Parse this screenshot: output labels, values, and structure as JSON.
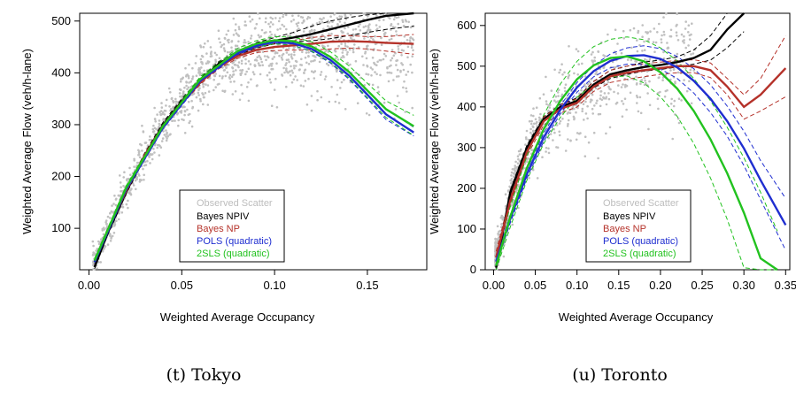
{
  "chart_data": [
    {
      "type": "line",
      "caption": "(t) Tokyo",
      "xlabel": "Weighted Average Occupancy",
      "ylabel": "Weighted Average Flow (veh/h-lane)",
      "xlim": [
        -0.005,
        0.182
      ],
      "ylim": [
        20,
        515
      ],
      "xticks": [
        0.0,
        0.05,
        0.1,
        0.15
      ],
      "xtick_labels": [
        "0.00",
        "0.05",
        "0.10",
        "0.15"
      ],
      "yticks": [
        100,
        200,
        300,
        400,
        500
      ],
      "ytick_labels": [
        "100",
        "200",
        "300",
        "400",
        "500"
      ],
      "grid": false,
      "legend_position": "bottom-right",
      "scatter_color": "#c0c0c0",
      "series": [
        {
          "name": "Observed Scatter",
          "color": "#bdbdbd",
          "kind": "scatter"
        },
        {
          "name": "Bayes NPIV",
          "color": "#000000",
          "kind": "line",
          "x": [
            0.003,
            0.01,
            0.02,
            0.03,
            0.04,
            0.05,
            0.06,
            0.07,
            0.08,
            0.09,
            0.1,
            0.11,
            0.12,
            0.13,
            0.14,
            0.15,
            0.16,
            0.175
          ],
          "y": [
            25,
            90,
            170,
            240,
            300,
            345,
            385,
            418,
            438,
            452,
            462,
            468,
            475,
            484,
            493,
            502,
            510,
            515
          ],
          "upper": [
            28,
            94,
            175,
            245,
            305,
            350,
            390,
            422,
            442,
            458,
            468,
            478,
            490,
            500,
            507,
            512,
            515,
            515
          ],
          "lower": [
            22,
            86,
            166,
            235,
            295,
            340,
            380,
            414,
            434,
            448,
            456,
            460,
            462,
            466,
            472,
            478,
            484,
            490
          ]
        },
        {
          "name": "Bayes NP",
          "color": "#b5322a",
          "kind": "line",
          "x": [
            0.003,
            0.01,
            0.02,
            0.03,
            0.04,
            0.05,
            0.06,
            0.07,
            0.08,
            0.09,
            0.1,
            0.11,
            0.12,
            0.13,
            0.14,
            0.15,
            0.16,
            0.175
          ],
          "y": [
            35,
            95,
            172,
            240,
            298,
            343,
            382,
            412,
            432,
            444,
            450,
            453,
            456,
            460,
            461,
            460,
            458,
            456
          ],
          "upper": [
            40,
            99,
            176,
            244,
            302,
            347,
            386,
            416,
            436,
            449,
            457,
            462,
            468,
            472,
            472,
            470,
            470,
            474
          ],
          "lower": [
            30,
            91,
            168,
            236,
            294,
            339,
            378,
            408,
            428,
            439,
            443,
            444,
            444,
            446,
            448,
            446,
            442,
            436
          ]
        },
        {
          "name": "POLS (quadratic)",
          "color": "#1f2ed0",
          "kind": "line",
          "x": [
            0.003,
            0.02,
            0.04,
            0.06,
            0.08,
            0.09,
            0.1,
            0.11,
            0.12,
            0.13,
            0.14,
            0.15,
            0.16,
            0.175
          ],
          "y": [
            35,
            175,
            295,
            385,
            438,
            452,
            460,
            457,
            446,
            425,
            395,
            358,
            320,
            285
          ],
          "upper": [
            38,
            178,
            298,
            388,
            441,
            455,
            463,
            461,
            451,
            431,
            402,
            366,
            330,
            295
          ],
          "lower": [
            32,
            172,
            292,
            382,
            435,
            449,
            457,
            453,
            441,
            419,
            388,
            350,
            310,
            278
          ]
        },
        {
          "name": "2SLS (quadratic)",
          "color": "#22c21f",
          "kind": "line",
          "x": [
            0.003,
            0.02,
            0.04,
            0.06,
            0.08,
            0.09,
            0.1,
            0.11,
            0.12,
            0.13,
            0.14,
            0.15,
            0.16,
            0.175
          ],
          "y": [
            38,
            178,
            298,
            388,
            442,
            456,
            463,
            461,
            451,
            431,
            402,
            366,
            330,
            297
          ],
          "upper": [
            42,
            182,
            302,
            393,
            447,
            462,
            470,
            469,
            460,
            441,
            414,
            380,
            346,
            318
          ],
          "lower": [
            34,
            174,
            294,
            383,
            437,
            450,
            456,
            453,
            442,
            421,
            390,
            352,
            314,
            279
          ]
        }
      ]
    },
    {
      "type": "line",
      "caption": "(u) Toronto",
      "xlabel": "Weighted Average Occupancy",
      "ylabel": "Weighted Average Flow (veh/h-lane)",
      "xlim": [
        -0.01,
        0.355
      ],
      "ylim": [
        0,
        630
      ],
      "xticks": [
        0.0,
        0.05,
        0.1,
        0.15,
        0.2,
        0.25,
        0.3,
        0.35
      ],
      "xtick_labels": [
        "0.00",
        "0.05",
        "0.10",
        "0.15",
        "0.20",
        "0.25",
        "0.30",
        "0.35"
      ],
      "yticks": [
        0,
        100,
        200,
        300,
        400,
        500,
        600
      ],
      "ytick_labels": [
        "0",
        "100",
        "200",
        "300",
        "400",
        "500",
        "600"
      ],
      "grid": false,
      "legend_position": "bottom-right",
      "scatter_color": "#c0c0c0",
      "series": [
        {
          "name": "Observed Scatter",
          "color": "#bdbdbd",
          "kind": "scatter"
        },
        {
          "name": "Bayes NPIV",
          "color": "#000000",
          "kind": "line",
          "x": [
            0.003,
            0.02,
            0.04,
            0.06,
            0.08,
            0.1,
            0.12,
            0.14,
            0.16,
            0.18,
            0.2,
            0.22,
            0.24,
            0.26,
            0.28,
            0.3
          ],
          "y": [
            5,
            190,
            300,
            370,
            400,
            415,
            455,
            480,
            490,
            498,
            503,
            510,
            520,
            540,
            590,
            630
          ],
          "upper": [
            10,
            196,
            306,
            376,
            406,
            422,
            463,
            490,
            500,
            510,
            515,
            523,
            540,
            575,
            630,
            630
          ],
          "lower": [
            0,
            184,
            294,
            364,
            394,
            408,
            447,
            470,
            480,
            488,
            492,
            498,
            505,
            515,
            545,
            585
          ]
        },
        {
          "name": "Bayes NP",
          "color": "#b5322a",
          "kind": "line",
          "x": [
            0.003,
            0.02,
            0.04,
            0.06,
            0.08,
            0.1,
            0.12,
            0.14,
            0.16,
            0.18,
            0.2,
            0.22,
            0.24,
            0.26,
            0.28,
            0.3,
            0.32,
            0.35
          ],
          "y": [
            30,
            170,
            290,
            365,
            395,
            410,
            450,
            475,
            484,
            490,
            495,
            500,
            500,
            490,
            450,
            400,
            430,
            495
          ],
          "upper": [
            45,
            180,
            300,
            375,
            405,
            420,
            462,
            490,
            500,
            506,
            510,
            514,
            516,
            508,
            470,
            430,
            470,
            575
          ],
          "lower": [
            15,
            160,
            280,
            355,
            385,
            400,
            438,
            460,
            468,
            474,
            480,
            484,
            484,
            472,
            430,
            370,
            390,
            425
          ]
        },
        {
          "name": "POLS (quadratic)",
          "color": "#1f2ed0",
          "kind": "line",
          "x": [
            0.003,
            0.02,
            0.04,
            0.06,
            0.08,
            0.1,
            0.12,
            0.14,
            0.16,
            0.18,
            0.2,
            0.22,
            0.24,
            0.26,
            0.28,
            0.3,
            0.32,
            0.35
          ],
          "y": [
            20,
            125,
            235,
            325,
            393,
            448,
            488,
            513,
            525,
            527,
            518,
            497,
            464,
            420,
            365,
            298,
            220,
            110
          ],
          "upper": [
            30,
            135,
            245,
            335,
            403,
            460,
            502,
            530,
            545,
            550,
            543,
            524,
            494,
            454,
            402,
            340,
            268,
            175
          ],
          "lower": [
            10,
            115,
            225,
            315,
            383,
            436,
            474,
            496,
            505,
            504,
            493,
            470,
            434,
            386,
            328,
            256,
            172,
            48
          ]
        },
        {
          "name": "2SLS (quadratic)",
          "color": "#22c21f",
          "kind": "line",
          "x": [
            0.003,
            0.02,
            0.04,
            0.06,
            0.08,
            0.1,
            0.12,
            0.14,
            0.16,
            0.18,
            0.2,
            0.22,
            0.24,
            0.26,
            0.28,
            0.3,
            0.32,
            0.34
          ],
          "y": [
            10,
            130,
            250,
            345,
            415,
            468,
            502,
            520,
            524,
            512,
            485,
            445,
            390,
            320,
            237,
            140,
            28,
            0
          ],
          "upper": [
            30,
            155,
            280,
            380,
            456,
            512,
            548,
            566,
            572,
            565,
            545,
            513,
            470,
            415,
            350,
            275,
            190,
            95
          ],
          "lower": [
            0,
            105,
            220,
            310,
            374,
            424,
            456,
            474,
            476,
            459,
            425,
            377,
            310,
            225,
            124,
            5,
            0,
            0
          ]
        }
      ]
    }
  ]
}
